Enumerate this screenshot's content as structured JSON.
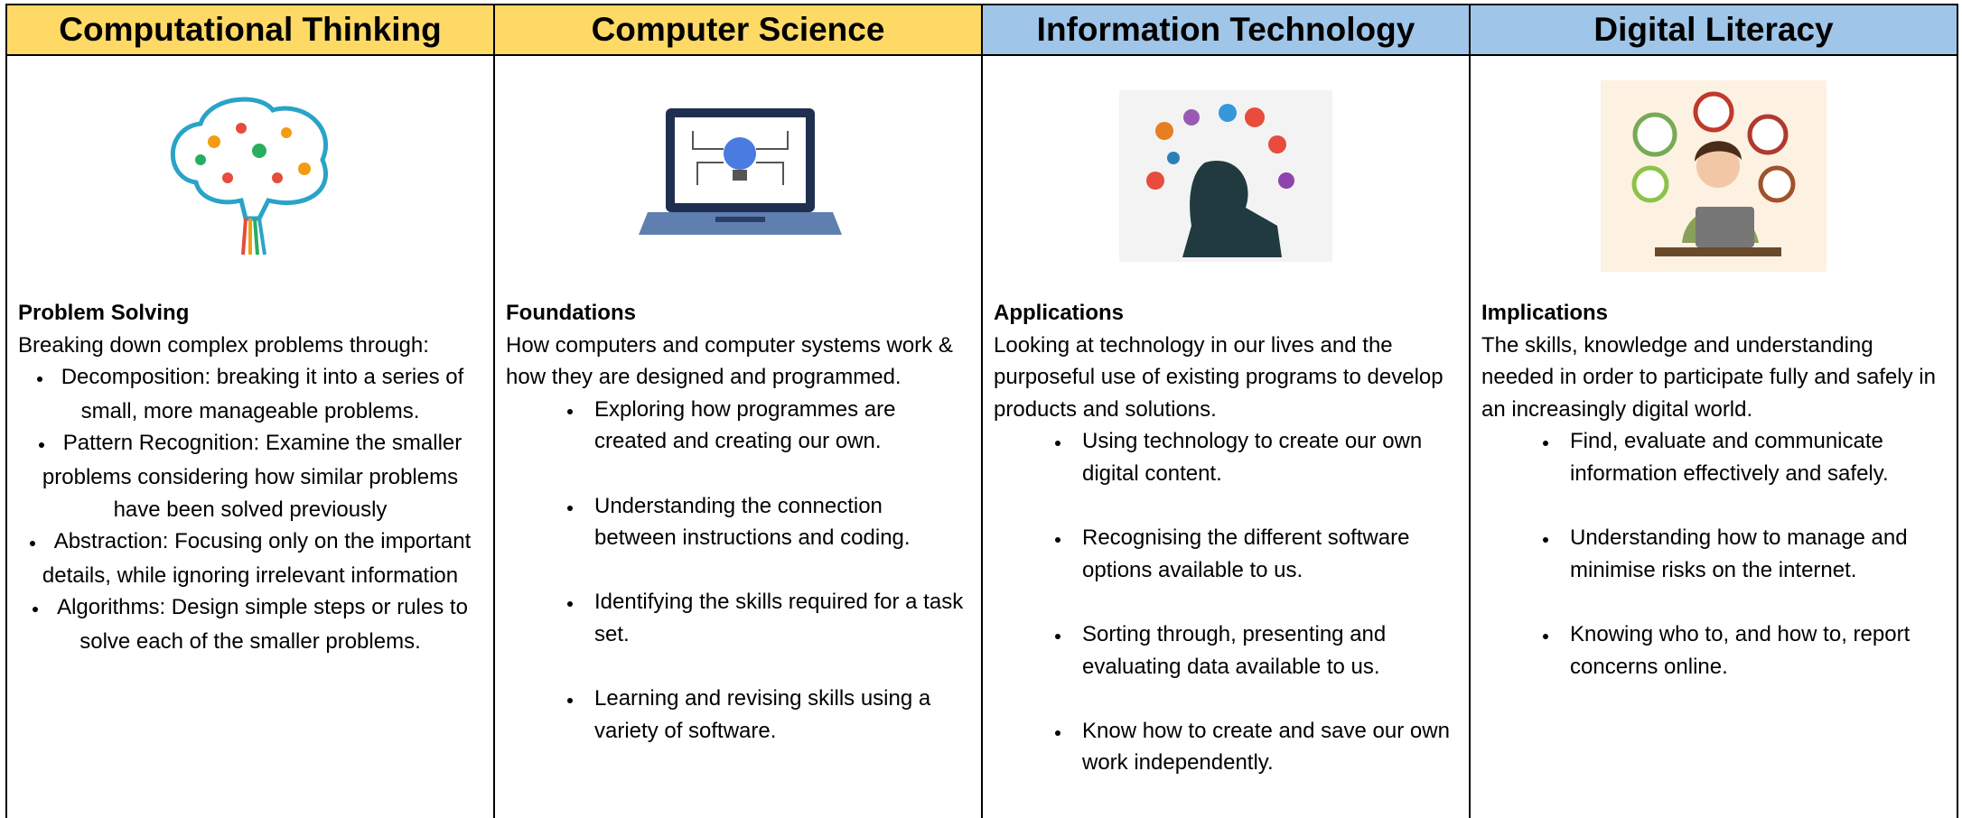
{
  "columns": [
    {
      "header": "Computational Thinking",
      "heading": "Problem Solving",
      "intro": "Breaking down complex problems through:",
      "bullets": [
        "Decomposition: breaking it into a series of small, more manageable problems.",
        "Pattern Recognition: Examine the smaller problems considering how similar problems have been solved previously",
        "Abstraction: Focusing only on the important details, while ignoring irrelevant information",
        "Algorithms: Design simple steps or rules to solve each of the smaller problems."
      ]
    },
    {
      "header": "Computer Science",
      "heading": "Foundations",
      "intro": "How computers and computer systems work & how they are designed and programmed.",
      "bullets": [
        "Exploring how programmes are created and creating our own.",
        "Understanding the connection between instructions and coding.",
        "Identifying the skills required for a task set.",
        "Learning and revising skills using a variety of software."
      ]
    },
    {
      "header": "Information Technology",
      "heading": "Applications",
      "intro": "Looking at technology in our lives and the purposeful use of existing programs to develop products and solutions.",
      "bullets": [
        "Using technology to create our own digital content.",
        "Recognising the different software options available to us.",
        "Sorting through, presenting and evaluating data available to us.",
        "Know how to create and save our own work independently."
      ]
    },
    {
      "header": "Digital Literacy",
      "heading": "Implications",
      "intro": "The skills, knowledge and understanding needed in order to participate fully and safely in an increasingly digital world.",
      "bullets": [
        "Find, evaluate and communicate information effectively and safely.",
        "Understanding how to manage and minimise risks on the internet.",
        "Knowing who to, and how to, report concerns online."
      ]
    }
  ]
}
